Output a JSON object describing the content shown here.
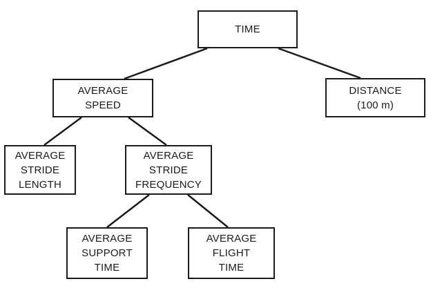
{
  "colors": {
    "stroke": "#1a1a1a",
    "background": "#ffffff"
  },
  "nodes": {
    "time": {
      "lines": [
        "TIME"
      ]
    },
    "speed": {
      "lines": [
        "AVERAGE",
        "SPEED"
      ]
    },
    "distance": {
      "lines": [
        "DISTANCE",
        "(100 m)"
      ]
    },
    "stride_length": {
      "lines": [
        "AVERAGE",
        "STRIDE",
        "LENGTH"
      ]
    },
    "stride_frequency": {
      "lines": [
        "AVERAGE",
        "STRIDE",
        "FREQUENCY"
      ]
    },
    "support_time": {
      "lines": [
        "AVERAGE",
        "SUPPORT",
        "TIME"
      ]
    },
    "flight_time": {
      "lines": [
        "AVERAGE",
        "FLIGHT",
        "TIME"
      ]
    }
  },
  "edges": [
    [
      "time",
      "speed"
    ],
    [
      "time",
      "distance"
    ],
    [
      "speed",
      "stride_length"
    ],
    [
      "speed",
      "stride_frequency"
    ],
    [
      "stride_frequency",
      "support_time"
    ],
    [
      "stride_frequency",
      "flight_time"
    ]
  ]
}
